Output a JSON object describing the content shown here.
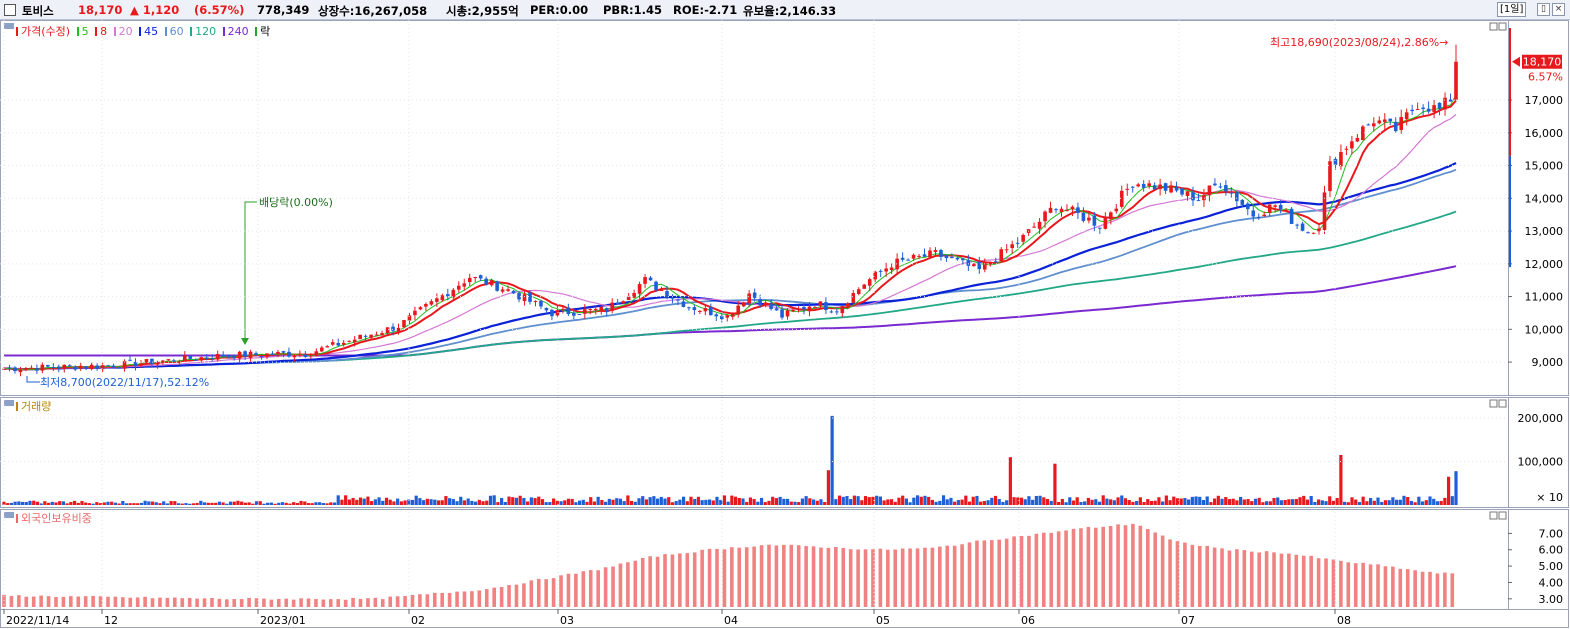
{
  "header": {
    "stock_name": "토비스",
    "price": "18,170",
    "change": "▲ 1,120",
    "change_pct": "(6.57%)",
    "volume": "778,349",
    "listed_shares": "상장수:16,267,058",
    "market_cap": "시총:2,955억",
    "per": "PER:0.00",
    "pbr": "PBR:1.45",
    "roe": "ROE:-2.71",
    "float_ratio": "유보율:2,146.33",
    "period": "[1일]",
    "btn_restore": "▯",
    "btn_close": "×"
  },
  "colors": {
    "up": "#e8181c",
    "down": "#1f5fd6",
    "ma5": "#1fbf1f",
    "ma8": "#e8181c",
    "ma20": "#d478d4",
    "ma45": "#0b22d8",
    "ma60": "#5f8fcf",
    "ma120": "#22a888",
    "ma240": "#7a2ad0",
    "foreign": "#f08282"
  },
  "price_panel": {
    "legend_title": "가격(수정)",
    "ma_labels": [
      "5",
      "8",
      "20",
      "45",
      "60",
      "120",
      "240"
    ],
    "legend_tail": "락",
    "yticks": [
      "9,000",
      "10,000",
      "11,000",
      "12,000",
      "13,000",
      "14,000",
      "15,000",
      "16,000",
      "17,000"
    ],
    "last_price_tag": "18,170",
    "last_pct_tag": "6.57%",
    "high_annotation": "최고18,690(2023/08/24),2.86%→",
    "low_annotation": "최저8,700(2022/11/17),52.12%",
    "dividend_annotation": "배당락(0.00%)"
  },
  "volume_panel": {
    "title": "거래량",
    "yticks": [
      "200,000",
      "100,000"
    ],
    "unit": "× 10"
  },
  "foreign_panel": {
    "title": "외국인보유비중",
    "yticks": [
      "7.00",
      "6.00",
      "5.00",
      "4.00",
      "3.00"
    ]
  },
  "xaxis": {
    "labels": [
      "2022/11/14",
      "12",
      "2023/01",
      "02",
      "03",
      "04",
      "05",
      "06",
      "07",
      "08"
    ]
  },
  "chart_data": [
    {
      "type": "candlestick",
      "title": "가격(수정)",
      "x_start": "2022-11-14",
      "x_end": "2023-08-24",
      "ylim": [
        8300,
        19200
      ],
      "ylabel_ticks": [
        9000,
        10000,
        11000,
        12000,
        13000,
        14000,
        15000,
        16000,
        17000
      ],
      "approx_close_path": [
        [
          0,
          8800
        ],
        [
          20,
          8900
        ],
        [
          40,
          9200
        ],
        [
          50,
          9250
        ],
        [
          55,
          9250
        ],
        [
          62,
          9600
        ],
        [
          72,
          10100
        ],
        [
          85,
          11600
        ],
        [
          92,
          11200
        ],
        [
          100,
          10500
        ],
        [
          110,
          10600
        ],
        [
          117,
          11500
        ],
        [
          125,
          10700
        ],
        [
          132,
          10400
        ],
        [
          136,
          11100
        ],
        [
          142,
          10400
        ],
        [
          148,
          10800
        ],
        [
          152,
          10600
        ],
        [
          157,
          11400
        ],
        [
          162,
          12000
        ],
        [
          170,
          12300
        ],
        [
          178,
          11800
        ],
        [
          186,
          12800
        ],
        [
          192,
          13800
        ],
        [
          200,
          13200
        ],
        [
          206,
          14500
        ],
        [
          212,
          14300
        ],
        [
          218,
          14000
        ],
        [
          222,
          14500
        ],
        [
          228,
          13500
        ],
        [
          232,
          13800
        ],
        [
          236,
          13200
        ],
        [
          238,
          13000
        ],
        [
          240,
          13200
        ],
        [
          242,
          15000
        ],
        [
          246,
          15800
        ],
        [
          250,
          16400
        ],
        [
          254,
          16100
        ],
        [
          258,
          16900
        ],
        [
          262,
          16700
        ],
        [
          264,
          17050
        ],
        [
          265,
          18170
        ]
      ],
      "last_close": 18170,
      "high": {
        "value": 18690,
        "date": "2023/08/24"
      },
      "low": {
        "value": 8700,
        "date": "2022/11/17"
      }
    },
    {
      "type": "bar",
      "title": "거래량",
      "unit": "× 10",
      "ylim": [
        0,
        230000
      ],
      "notable_values": [
        {
          "index": 223,
          "value": 205000
        },
        {
          "index": 222,
          "value": 80000
        },
        {
          "index": 271,
          "value": 110000
        },
        {
          "index": 283,
          "value": 95000
        },
        {
          "index": 360,
          "value": 115000
        },
        {
          "index": 389,
          "value": 65000
        }
      ],
      "typical_value": 18000
    },
    {
      "type": "bar",
      "title": "외국인보유비중",
      "ylim": [
        2.5,
        8.0
      ],
      "approx_path": [
        [
          0,
          3.2
        ],
        [
          30,
          3.1
        ],
        [
          60,
          3.0
        ],
        [
          100,
          3.0
        ],
        [
          130,
          3.6
        ],
        [
          150,
          4.4
        ],
        [
          160,
          4.8
        ],
        [
          175,
          5.6
        ],
        [
          190,
          6.0
        ],
        [
          205,
          6.3
        ],
        [
          218,
          6.2
        ],
        [
          235,
          6.0
        ],
        [
          250,
          6.1
        ],
        [
          265,
          6.6
        ],
        [
          280,
          7.0
        ],
        [
          290,
          7.3
        ],
        [
          305,
          7.6
        ],
        [
          315,
          6.5
        ],
        [
          330,
          6.0
        ],
        [
          345,
          5.8
        ],
        [
          360,
          5.3
        ],
        [
          372,
          5.0
        ],
        [
          384,
          4.6
        ],
        [
          392,
          4.5
        ]
      ]
    }
  ]
}
